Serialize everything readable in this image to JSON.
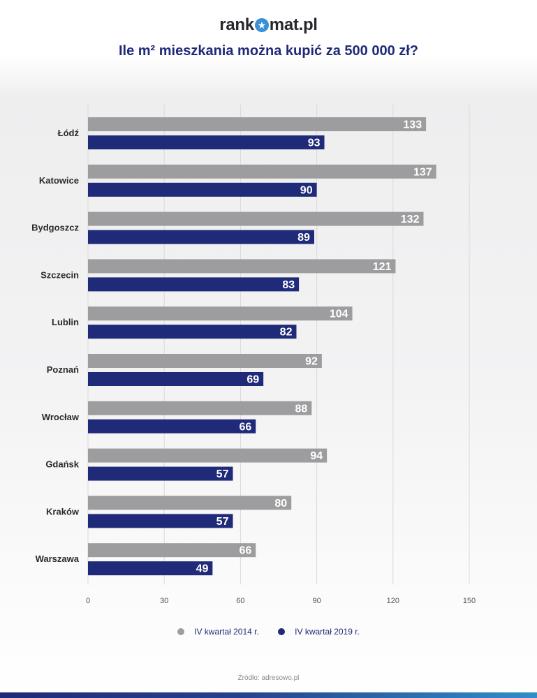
{
  "header": {
    "logo_left": "rank",
    "logo_right": "mat.pl",
    "title": "Ile m² mieszkania można kupić za 500 000 zł?"
  },
  "colors": {
    "series_2014": "#9d9d9f",
    "series_2019": "#1f2a78",
    "grid": "#d9d9d9",
    "label_text": "#2b2b2b"
  },
  "chart_data": {
    "type": "bar",
    "orientation": "horizontal",
    "title": "Ile m² mieszkania można kupić za 500 000 zł?",
    "categories": [
      "Łódź",
      "Katowice",
      "Bydgoszcz",
      "Szczecin",
      "Lublin",
      "Poznań",
      "Wrocław",
      "Gdańsk",
      "Kraków",
      "Warszawa"
    ],
    "series": [
      {
        "name": "IV kwartał 2014 r.",
        "values": [
          133,
          137,
          132,
          121,
          104,
          92,
          88,
          94,
          80,
          66
        ]
      },
      {
        "name": "IV kwartał 2019 r.",
        "values": [
          93,
          90,
          89,
          83,
          82,
          69,
          66,
          57,
          57,
          49
        ]
      }
    ],
    "xlim": [
      0,
      150
    ],
    "xticks": [
      0,
      30,
      60,
      90,
      120,
      150
    ],
    "grid": true,
    "data_labels": true,
    "legend_position": "bottom"
  },
  "source": "Źródło: adresowo.pl"
}
